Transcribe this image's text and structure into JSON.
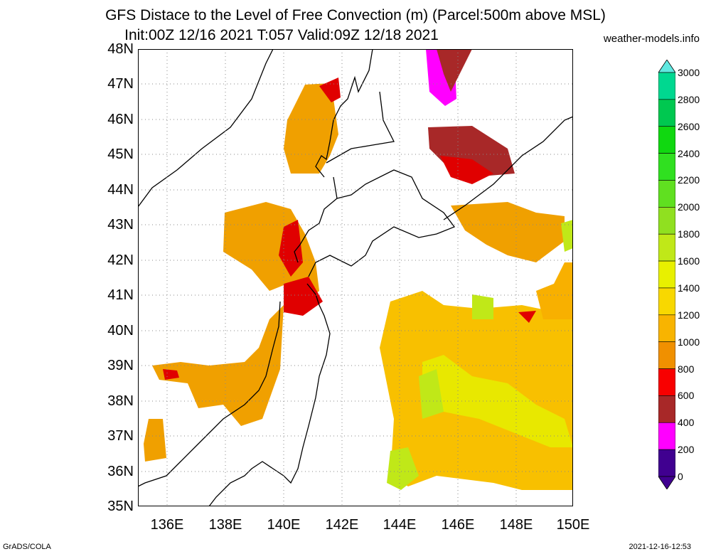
{
  "title": {
    "line1": "GFS Distace to the Level of Free Convection (m) (Parcel:500m above MSL)",
    "line2": "Init:00Z 12/16 2021 T:057 Valid:09Z 12/18 2021"
  },
  "source_label": "weather-models.info",
  "footer": {
    "left": "GrADS/COLA",
    "right": "2021-12-16-12:53"
  },
  "map": {
    "lat_labels": [
      "48N",
      "47N",
      "46N",
      "45N",
      "44N",
      "43N",
      "42N",
      "41N",
      "40N",
      "39N",
      "38N",
      "37N",
      "36N",
      "35N"
    ],
    "lon_labels": [
      "136E",
      "138E",
      "140E",
      "142E",
      "144E",
      "146E",
      "148E",
      "150E"
    ]
  },
  "colorbar": {
    "labels": [
      "3000",
      "2800",
      "2600",
      "2400",
      "2200",
      "2000",
      "1800",
      "1600",
      "1400",
      "1200",
      "1000",
      "800",
      "600",
      "400",
      "200",
      "0"
    ],
    "colors": [
      "#00e0c0",
      "#00d890",
      "#00c850",
      "#10d810",
      "#30e020",
      "#60e020",
      "#90e020",
      "#c0e818",
      "#e8f000",
      "#f8d800",
      "#f8b400",
      "#f09000",
      "#f80000",
      "#a82828",
      "#ff00ff",
      "#400090"
    ],
    "top_color": "#60e8e0",
    "bottom_color": "#400090"
  }
}
